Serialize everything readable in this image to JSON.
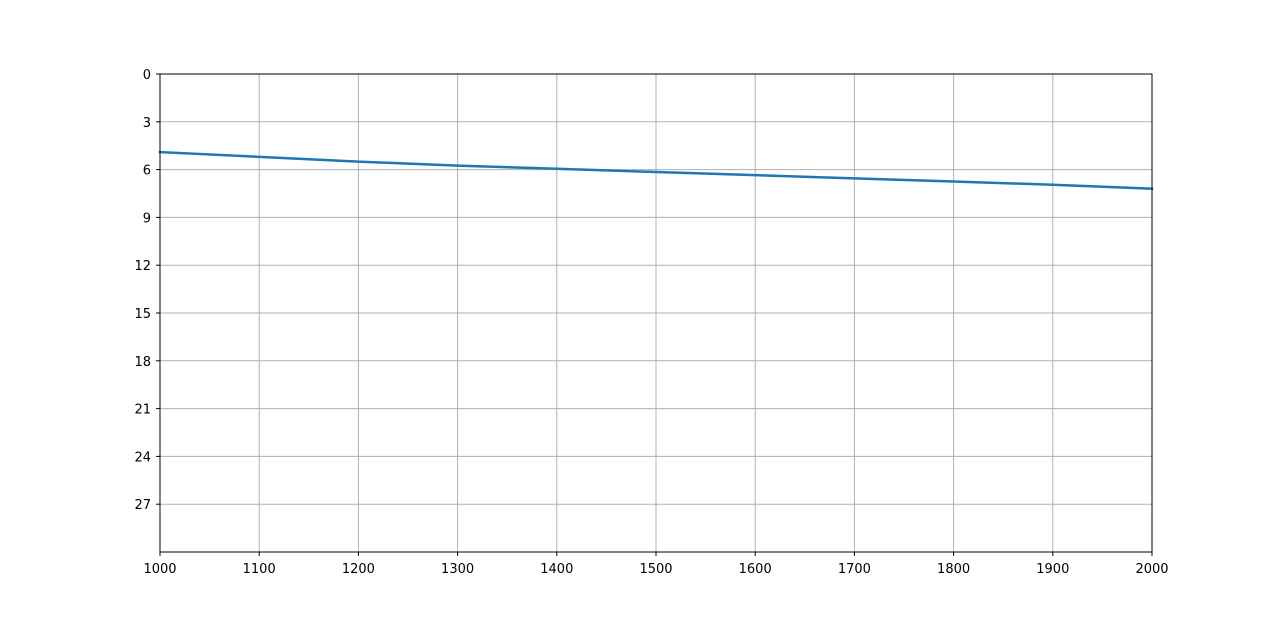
{
  "chart_data": {
    "type": "line",
    "title": "",
    "xlabel": "",
    "ylabel": "",
    "xlim": [
      1000,
      2000
    ],
    "ylim": [
      30,
      0
    ],
    "y_inverted": true,
    "grid": true,
    "x_ticks": [
      "1000",
      "1100",
      "1200",
      "1300",
      "1400",
      "1500",
      "1600",
      "1700",
      "1800",
      "1900",
      "2000"
    ],
    "y_ticks": [
      "0",
      "3",
      "6",
      "9",
      "12",
      "15",
      "18",
      "21",
      "24",
      "27"
    ],
    "series": [
      {
        "color": "#1f77b4",
        "x": [
          1000,
          1100,
          1200,
          1300,
          1400,
          1500,
          1600,
          1700,
          1800,
          1900,
          2000
        ],
        "y": [
          4.9,
          5.2,
          5.5,
          5.75,
          5.95,
          6.15,
          6.35,
          6.55,
          6.75,
          6.95,
          7.2
        ]
      }
    ]
  }
}
